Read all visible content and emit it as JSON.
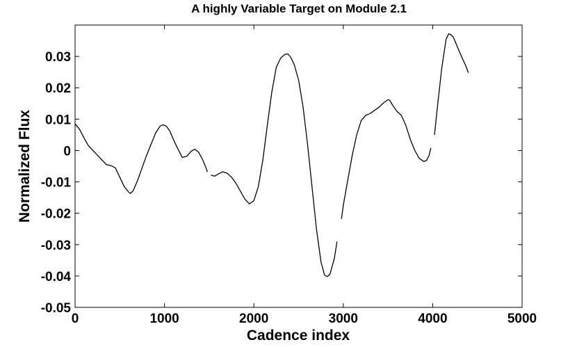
{
  "chart_data": {
    "type": "line",
    "title": "A highly Variable Target on Module 2.1",
    "xlabel": "Cadence index",
    "ylabel": "Normalized Flux",
    "xlim": [
      0,
      5000
    ],
    "ylim": [
      -0.05,
      0.04
    ],
    "xticks": [
      0,
      1000,
      2000,
      3000,
      4000,
      5000
    ],
    "xtick_labels": [
      "0",
      "1000",
      "2000",
      "3000",
      "4000",
      "5000"
    ],
    "yticks": [
      -0.05,
      -0.04,
      -0.03,
      -0.02,
      -0.01,
      0,
      0.01,
      0.02,
      0.03
    ],
    "ytick_labels": [
      "-0.05",
      "-0.04",
      "-0.03",
      "-0.02",
      "-0.01",
      "0",
      "0.01",
      "0.02",
      "0.03"
    ],
    "grid": false,
    "line_color": "#000000",
    "segments": [
      {
        "x": [
          0,
          50,
          100,
          150,
          200,
          250,
          300,
          350,
          400,
          450,
          500,
          550,
          600,
          620,
          650,
          700,
          750,
          800,
          850,
          900,
          950,
          985,
          1020,
          1060,
          1100,
          1150,
          1200,
          1250,
          1300,
          1340,
          1380,
          1420,
          1460,
          1480
        ],
        "y": [
          0.0085,
          0.0068,
          0.004,
          0.0015,
          0.0,
          -0.0015,
          -0.003,
          -0.0045,
          -0.0048,
          -0.0055,
          -0.0085,
          -0.0115,
          -0.0133,
          -0.0137,
          -0.0128,
          -0.0095,
          -0.0055,
          -0.0015,
          0.002,
          0.0055,
          0.0078,
          0.0082,
          0.0078,
          0.0062,
          0.0035,
          0.0005,
          -0.0022,
          -0.0018,
          -0.0002,
          0.0004,
          -0.0005,
          -0.0025,
          -0.0052,
          -0.0068
        ]
      },
      {
        "x": [
          1520,
          1560,
          1600,
          1650,
          1700,
          1750,
          1800,
          1850,
          1900,
          1950,
          2000,
          2050,
          2100,
          2150,
          2200,
          2250,
          2300,
          2350,
          2380,
          2410,
          2450,
          2500,
          2550,
          2600,
          2650,
          2700,
          2750,
          2790,
          2820,
          2850,
          2900,
          2930
        ],
        "y": [
          -0.0078,
          -0.0082,
          -0.0075,
          -0.0068,
          -0.0072,
          -0.0085,
          -0.0105,
          -0.013,
          -0.0155,
          -0.017,
          -0.016,
          -0.0115,
          -0.003,
          0.008,
          0.0185,
          0.0265,
          0.0295,
          0.0307,
          0.0308,
          0.0298,
          0.0275,
          0.0225,
          0.014,
          0.002,
          -0.0115,
          -0.025,
          -0.0355,
          -0.0397,
          -0.0402,
          -0.0395,
          -0.0345,
          -0.029
        ]
      },
      {
        "x": [
          2980,
          3000,
          3050,
          3100,
          3150,
          3200,
          3250,
          3300,
          3350,
          3400,
          3450,
          3500,
          3520,
          3550,
          3600,
          3650,
          3700,
          3750,
          3800,
          3850,
          3900,
          3930,
          3960,
          3980
        ],
        "y": [
          -0.0218,
          -0.0175,
          -0.0095,
          -0.0015,
          0.005,
          0.0095,
          0.0112,
          0.0118,
          0.0128,
          0.0138,
          0.0152,
          0.0162,
          0.016,
          0.0145,
          0.0125,
          0.0112,
          0.008,
          0.0035,
          0.0,
          -0.0025,
          -0.0035,
          -0.0032,
          -0.0015,
          0.0008
        ]
      },
      {
        "x": [
          4020,
          4050,
          4100,
          4150,
          4180,
          4200,
          4230,
          4280,
          4330,
          4370,
          4400
        ],
        "y": [
          0.005,
          0.013,
          0.026,
          0.0355,
          0.0372,
          0.037,
          0.0362,
          0.0328,
          0.0295,
          0.027,
          0.0248
        ]
      }
    ]
  }
}
